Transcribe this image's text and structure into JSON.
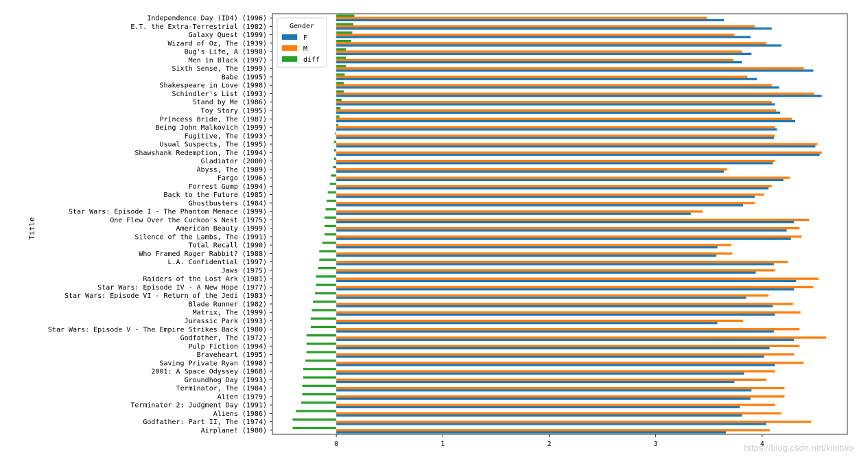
{
  "chart_data": {
    "type": "bar",
    "orientation": "horizontal",
    "ylabel": "Title",
    "xlabel": "",
    "xlim": [
      -0.6,
      4.8
    ],
    "xticks": [
      0,
      1,
      2,
      3,
      4
    ],
    "grid": false,
    "legend": {
      "title": "Gender",
      "placement": "top-left"
    },
    "colors": {
      "F": "#1f77b4",
      "M": "#ff7f0e",
      "diff": "#2ca02c"
    },
    "categories": [
      "Independence Day (ID4) (1996)",
      "E.T. the Extra-Terrestrial (1982)",
      "Galaxy Quest (1999)",
      "Wizard of Oz, The (1939)",
      "Bug's Life, A (1998)",
      "Men in Black (1997)",
      "Sixth Sense, The (1999)",
      "Babe (1995)",
      "Shakespeare in Love (1998)",
      "Schindler's List (1993)",
      "Stand by Me (1986)",
      "Toy Story (1995)",
      "Princess Bride, The (1987)",
      "Being John Malkovich (1999)",
      "Fugitive, The (1993)",
      "Usual Suspects, The (1995)",
      "Shawshank Redemption, The (1994)",
      "Gladiator (2000)",
      "Abyss, The (1989)",
      "Fargo (1996)",
      "Forrest Gump (1994)",
      "Back to the Future (1985)",
      "Ghostbusters (1984)",
      "Star Wars: Episode I - The Phantom Menace (1999)",
      "One Flew Over the Cuckoo's Nest (1975)",
      "American Beauty (1999)",
      "Silence of the Lambs, The (1991)",
      "Total Recall (1990)",
      "Who Framed Roger Rabbit? (1988)",
      "L.A. Confidential (1997)",
      "Jaws (1975)",
      "Raiders of the Lost Ark (1981)",
      "Star Wars: Episode IV - A New Hope (1977)",
      "Star Wars: Episode VI - Return of the Jedi (1983)",
      "Blade Runner (1982)",
      "Matrix, The (1999)",
      "Jurassic Park (1993)",
      "Star Wars: Episode V - The Empire Strikes Back (1980)",
      "Godfather, The (1972)",
      "Pulp Fiction (1994)",
      "Braveheart (1995)",
      "Saving Private Ryan (1998)",
      "2001: A Space Odyssey (1968)",
      "Groundhog Day (1993)",
      "Terminator, The (1984)",
      "Alien (1979)",
      "Terminator 2: Judgment Day (1991)",
      "Aliens (1986)",
      "Godfather: Part II, The (1974)",
      "Airplane! (1980)"
    ],
    "series": [
      {
        "name": "F",
        "values": [
          3.64,
          4.09,
          3.89,
          4.18,
          3.9,
          3.81,
          4.48,
          3.95,
          4.16,
          4.56,
          4.12,
          4.17,
          4.31,
          4.14,
          4.11,
          4.5,
          4.54,
          4.1,
          3.64,
          4.2,
          4.06,
          3.93,
          3.82,
          3.33,
          4.3,
          4.23,
          4.27,
          3.58,
          3.57,
          4.11,
          3.94,
          4.32,
          4.3,
          3.85,
          4.1,
          4.12,
          3.58,
          4.11,
          4.3,
          4.07,
          4.02,
          4.12,
          3.83,
          3.74,
          3.9,
          3.89,
          3.79,
          3.81,
          4.04,
          3.66
        ]
      },
      {
        "name": "M",
        "values": [
          3.48,
          3.93,
          3.74,
          4.04,
          3.81,
          3.73,
          4.39,
          3.86,
          4.09,
          4.49,
          4.09,
          4.13,
          4.28,
          4.12,
          4.12,
          4.52,
          4.56,
          4.12,
          3.67,
          4.26,
          4.09,
          4.02,
          3.93,
          3.44,
          4.44,
          4.35,
          4.37,
          3.71,
          3.72,
          4.24,
          4.12,
          4.53,
          4.48,
          4.06,
          4.29,
          4.36,
          3.82,
          4.35,
          4.6,
          4.35,
          4.3,
          4.39,
          4.12,
          4.04,
          4.21,
          4.21,
          4.12,
          4.18,
          4.46,
          4.07
        ]
      },
      {
        "name": "diff",
        "values": [
          0.17,
          0.16,
          0.15,
          0.14,
          0.09,
          0.09,
          0.09,
          0.08,
          0.07,
          0.07,
          0.05,
          0.04,
          0.03,
          0.02,
          -0.01,
          -0.02,
          -0.02,
          -0.02,
          -0.03,
          -0.05,
          -0.06,
          -0.08,
          -0.09,
          -0.1,
          -0.11,
          -0.11,
          -0.11,
          -0.13,
          -0.16,
          -0.16,
          -0.17,
          -0.19,
          -0.19,
          -0.2,
          -0.22,
          -0.23,
          -0.24,
          -0.24,
          -0.28,
          -0.28,
          -0.28,
          -0.29,
          -0.31,
          -0.31,
          -0.32,
          -0.32,
          -0.33,
          -0.38,
          -0.41,
          -0.41
        ]
      }
    ]
  },
  "watermark": "https://blog.csdn.net/kilotwo"
}
